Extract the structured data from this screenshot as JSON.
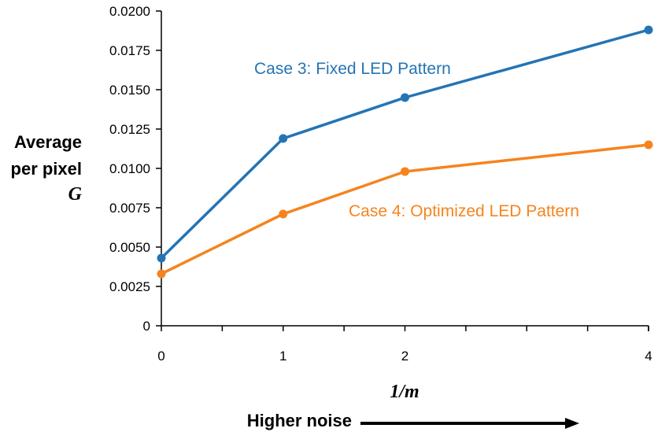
{
  "chart_data": {
    "type": "line",
    "ylabel_lines": [
      "Average",
      "per pixel"
    ],
    "ylabel_symbol": "G",
    "xlabel": "1/m",
    "annotation": "Higher noise",
    "x_tick_labels": [
      "0",
      "1",
      "2",
      "4"
    ],
    "y_tick_labels": [
      "0",
      "0.0025",
      "0.0050",
      "0.0075",
      "0.0100",
      "0.0125",
      "0.0150",
      "0.0175",
      "0.0200"
    ],
    "ylim": [
      0,
      0.02
    ],
    "grid": false,
    "series": [
      {
        "name": "Case 3: Fixed LED Pattern",
        "color": "#2474b5",
        "x": [
          0,
          1,
          2,
          4
        ],
        "values": [
          0.0043,
          0.0119,
          0.0145,
          0.0188
        ]
      },
      {
        "name": "Case 4: Optimized LED Pattern",
        "color": "#f5841f",
        "x": [
          0,
          1,
          2,
          4
        ],
        "values": [
          0.0033,
          0.0071,
          0.0098,
          0.0115
        ]
      }
    ]
  }
}
